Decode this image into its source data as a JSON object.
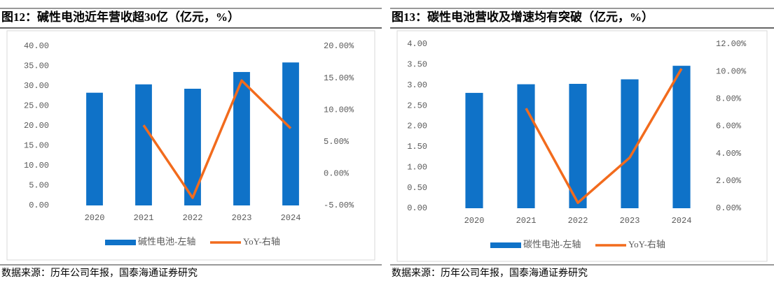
{
  "chart_data": [
    {
      "type": "combo",
      "title": "图12：碱性电池近年营收超30亿（亿元，%）",
      "source": "数据来源：历年公司年报，国泰海通证券研究",
      "categories": [
        "2020",
        "2021",
        "2022",
        "2023",
        "2024"
      ],
      "series": [
        {
          "name": "碱性电池-左轴",
          "type": "bar",
          "color": "#0f72c8",
          "values": [
            28.3,
            30.4,
            29.3,
            33.5,
            35.9
          ]
        },
        {
          "name": "YoY-右轴",
          "type": "line",
          "axis": "y2",
          "color": "#f26b1d",
          "values": [
            null,
            7.6,
            -3.8,
            14.6,
            7.1
          ]
        }
      ],
      "ylim": [
        0,
        40
      ],
      "yticks": [
        {
          "value": 0,
          "label": "0.00"
        },
        {
          "value": 5,
          "label": "5.00"
        },
        {
          "value": 10,
          "label": "10.00"
        },
        {
          "value": 15,
          "label": "15.00"
        },
        {
          "value": 20,
          "label": "20.00"
        },
        {
          "value": 25,
          "label": "25.00"
        },
        {
          "value": 30,
          "label": "30.00"
        },
        {
          "value": 35,
          "label": "35.00"
        },
        {
          "value": 40,
          "label": "40.00"
        }
      ],
      "y2lim": [
        -5,
        20
      ],
      "y2ticks": [
        {
          "value": -5,
          "label": "-5.00%"
        },
        {
          "value": 0,
          "label": "0.00%"
        },
        {
          "value": 5,
          "label": "5.00%"
        },
        {
          "value": 10,
          "label": "10.00%"
        },
        {
          "value": 15,
          "label": "15.00%"
        },
        {
          "value": 20,
          "label": "20.00%"
        }
      ]
    },
    {
      "type": "combo",
      "title": "图13：碳性电池营收及增速均有突破（亿元，%）",
      "source": "数据来源：历年公司年报，国泰海通证券研究",
      "categories": [
        "2020",
        "2021",
        "2022",
        "2023",
        "2024"
      ],
      "series": [
        {
          "name": "碳性电池-左轴",
          "type": "bar",
          "color": "#0f72c8",
          "values": [
            2.81,
            3.02,
            3.03,
            3.14,
            3.47
          ]
        },
        {
          "name": "YoY-右轴",
          "type": "line",
          "axis": "y2",
          "color": "#f26b1d",
          "values": [
            null,
            7.3,
            0.4,
            3.7,
            10.2
          ]
        }
      ],
      "ylim": [
        0,
        4
      ],
      "yticks": [
        {
          "value": 0,
          "label": "0.00"
        },
        {
          "value": 0.5,
          "label": "0.50"
        },
        {
          "value": 1,
          "label": "1.00"
        },
        {
          "value": 1.5,
          "label": "1.50"
        },
        {
          "value": 2,
          "label": "2.00"
        },
        {
          "value": 2.5,
          "label": "2.50"
        },
        {
          "value": 3,
          "label": "3.00"
        },
        {
          "value": 3.5,
          "label": "3.50"
        },
        {
          "value": 4,
          "label": "4.00"
        }
      ],
      "y2lim": [
        0,
        12
      ],
      "y2ticks": [
        {
          "value": 0,
          "label": "0.00%"
        },
        {
          "value": 2,
          "label": "2.00%"
        },
        {
          "value": 4,
          "label": "4.00%"
        },
        {
          "value": 6,
          "label": "6.00%"
        },
        {
          "value": 8,
          "label": "8.00%"
        },
        {
          "value": 10,
          "label": "10.00%"
        },
        {
          "value": 12,
          "label": "12.00%"
        }
      ]
    }
  ]
}
